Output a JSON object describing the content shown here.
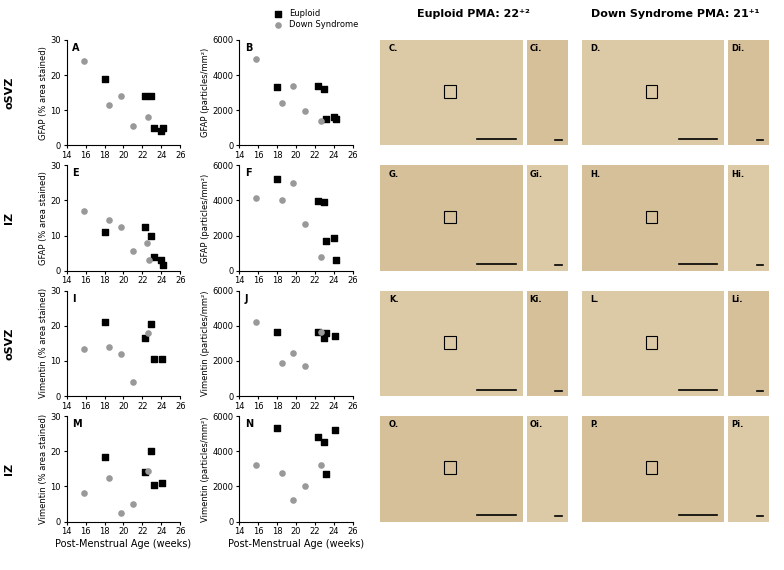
{
  "chart_data": [
    {
      "type": "scatter",
      "title": "A",
      "ylabel": "GFAP (% area stained)",
      "xlim": [
        14,
        26
      ],
      "xticks": [
        14,
        16,
        18,
        20,
        22,
        24,
        26
      ],
      "ylim": [
        0,
        30
      ],
      "yticks": [
        0,
        10,
        20,
        30
      ],
      "series": [
        {
          "name": "Euploid",
          "color": "#000000",
          "marker": "square",
          "x": [
            18,
            22.3,
            22.9,
            23.2,
            24,
            24.2
          ],
          "values": [
            19,
            14,
            14,
            5,
            4,
            5
          ]
        },
        {
          "name": "Down Syndrome",
          "color": "#999999",
          "marker": "circle",
          "x": [
            15.8,
            18.5,
            19.7,
            21,
            22.6
          ],
          "values": [
            24,
            11.5,
            14,
            5.5,
            8
          ]
        }
      ]
    },
    {
      "type": "scatter",
      "title": "B",
      "ylabel": "GFAP (particles/mm²)",
      "legend": "upper right",
      "xlim": [
        14,
        26
      ],
      "xticks": [
        14,
        16,
        18,
        20,
        22,
        24,
        26
      ],
      "ylim": [
        0,
        6000
      ],
      "yticks": [
        0,
        2000,
        4000,
        6000
      ],
      "series": [
        {
          "name": "Euploid",
          "color": "#000000",
          "marker": "square",
          "x": [
            18,
            22.3,
            23,
            23.2,
            24,
            24.2
          ],
          "values": [
            3300,
            3350,
            3200,
            1500,
            1600,
            1500
          ]
        },
        {
          "name": "Down Syndrome",
          "color": "#999999",
          "marker": "circle",
          "x": [
            15.8,
            18.5,
            19.7,
            21,
            22.6
          ],
          "values": [
            4900,
            2400,
            3350,
            1950,
            1400
          ]
        }
      ]
    },
    {
      "type": "scatter",
      "title": "E",
      "ylabel": "GFAP (% area stained)",
      "xlim": [
        14,
        26
      ],
      "xticks": [
        14,
        16,
        18,
        20,
        22,
        24,
        26
      ],
      "ylim": [
        0,
        30
      ],
      "yticks": [
        0,
        10,
        20,
        30
      ],
      "series": [
        {
          "name": "Euploid",
          "color": "#000000",
          "marker": "square",
          "x": [
            18,
            22.3,
            22.9,
            23.2,
            24,
            24.2
          ],
          "values": [
            11,
            12.5,
            10,
            4,
            3,
            1.5
          ]
        },
        {
          "name": "Down Syndrome",
          "color": "#999999",
          "marker": "circle",
          "x": [
            15.8,
            18.5,
            19.7,
            21,
            22.5,
            22.7
          ],
          "values": [
            17,
            14.5,
            12.5,
            5.5,
            8,
            3
          ]
        }
      ]
    },
    {
      "type": "scatter",
      "title": "F",
      "ylabel": "GFAP (particles/mm²)",
      "xlim": [
        14,
        26
      ],
      "xticks": [
        14,
        16,
        18,
        20,
        22,
        24,
        26
      ],
      "ylim": [
        0,
        6000
      ],
      "yticks": [
        0,
        2000,
        4000,
        6000
      ],
      "series": [
        {
          "name": "Euploid",
          "color": "#000000",
          "marker": "square",
          "x": [
            18,
            22.3,
            23,
            23.2,
            24,
            24.2
          ],
          "values": [
            5200,
            3950,
            3900,
            1700,
            1850,
            600
          ]
        },
        {
          "name": "Down Syndrome",
          "color": "#999999",
          "marker": "circle",
          "x": [
            15.8,
            18.5,
            19.7,
            21,
            22.6
          ],
          "values": [
            4150,
            4050,
            5000,
            2650,
            800
          ]
        }
      ]
    },
    {
      "type": "scatter",
      "title": "I",
      "ylabel": "Vimentin (% area stained)",
      "xlim": [
        14,
        26
      ],
      "xticks": [
        14,
        16,
        18,
        20,
        22,
        24,
        26
      ],
      "ylim": [
        0,
        30
      ],
      "yticks": [
        0,
        10,
        20,
        30
      ],
      "series": [
        {
          "name": "Euploid",
          "color": "#000000",
          "marker": "square",
          "x": [
            18,
            22.3,
            22.9,
            23.2,
            24.1
          ],
          "values": [
            21,
            16.5,
            20.5,
            10.5,
            10.5
          ]
        },
        {
          "name": "Down Syndrome",
          "color": "#999999",
          "marker": "circle",
          "x": [
            15.8,
            18.5,
            19.7,
            21,
            22.6
          ],
          "values": [
            13.5,
            14,
            12,
            4,
            18
          ]
        }
      ]
    },
    {
      "type": "scatter",
      "title": "J",
      "ylabel": "Vimentin (particles/mm²)",
      "xlim": [
        14,
        26
      ],
      "xticks": [
        14,
        16,
        18,
        20,
        22,
        24,
        26
      ],
      "ylim": [
        0,
        6000
      ],
      "yticks": [
        0,
        2000,
        4000,
        6000
      ],
      "series": [
        {
          "name": "Euploid",
          "color": "#000000",
          "marker": "square",
          "x": [
            18,
            22.3,
            23,
            23.2,
            24.1
          ],
          "values": [
            3650,
            3650,
            3300,
            3600,
            3400
          ]
        },
        {
          "name": "Down Syndrome",
          "color": "#999999",
          "marker": "circle",
          "x": [
            15.8,
            18.5,
            19.7,
            21,
            22.6
          ],
          "values": [
            4200,
            1900,
            2450,
            1700,
            3650
          ]
        }
      ]
    },
    {
      "type": "scatter",
      "title": "M",
      "ylabel": "Vimentin (% area stained)",
      "xlabel": "Post-Menstrual Age (weeks)",
      "xlim": [
        14,
        26
      ],
      "xticks": [
        14,
        16,
        18,
        20,
        22,
        24,
        26
      ],
      "ylim": [
        0,
        30
      ],
      "yticks": [
        0,
        10,
        20,
        30
      ],
      "series": [
        {
          "name": "Euploid",
          "color": "#000000",
          "marker": "square",
          "x": [
            18,
            22.3,
            22.9,
            23.2,
            24.1
          ],
          "values": [
            18.5,
            14,
            20,
            10.5,
            11
          ]
        },
        {
          "name": "Down Syndrome",
          "color": "#999999",
          "marker": "circle",
          "x": [
            15.8,
            18.5,
            19.7,
            21,
            22.6
          ],
          "values": [
            8,
            12.5,
            2.5,
            5,
            14.5
          ]
        }
      ]
    },
    {
      "type": "scatter",
      "title": "N",
      "ylabel": "Vimentin (particles/mm²)",
      "xlabel": "Post-Menstrual Age (weeks)",
      "xlim": [
        14,
        26
      ],
      "xticks": [
        14,
        16,
        18,
        20,
        22,
        24,
        26
      ],
      "ylim": [
        0,
        6000
      ],
      "yticks": [
        0,
        2000,
        4000,
        6000
      ],
      "series": [
        {
          "name": "Euploid",
          "color": "#000000",
          "marker": "square",
          "x": [
            18,
            22.3,
            23,
            23.2,
            24.1
          ],
          "values": [
            5300,
            4800,
            4550,
            2700,
            5200
          ]
        },
        {
          "name": "Down Syndrome",
          "color": "#999999",
          "marker": "circle",
          "x": [
            15.8,
            18.5,
            19.7,
            21,
            22.6
          ],
          "values": [
            3200,
            2750,
            1200,
            2000,
            3200
          ]
        }
      ]
    }
  ],
  "figure": {
    "row_labels": [
      "oSVZ",
      "IZ",
      "oSVZ",
      "IZ"
    ],
    "image_columns": [
      "Euploid PMA: 22⁺²",
      "Down Syndrome PMA: 21⁺¹"
    ],
    "image_panels": [
      [
        "C.",
        "Ci.",
        "D.",
        "Di."
      ],
      [
        "G.",
        "Gi.",
        "H.",
        "Hi."
      ],
      [
        "K.",
        "Ki.",
        "L.",
        "Li."
      ],
      [
        "O.",
        "Oi.",
        "P.",
        "Pi."
      ]
    ]
  }
}
